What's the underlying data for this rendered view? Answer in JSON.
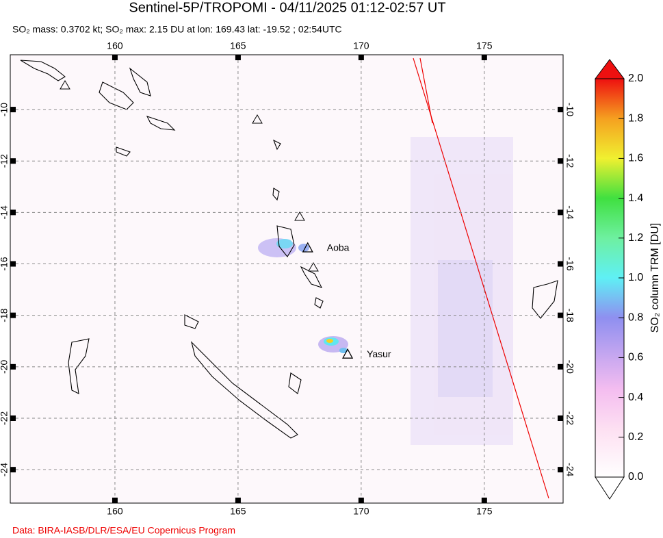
{
  "title": "Sentinel-5P/TROPOMI - 04/11/2025 01:12-02:57 UT",
  "subtitle": "SO₂ mass: 0.3702 kt; SO₂ max: 2.15 DU at lon: 169.43 lat: -19.52 ; 02:54UTC",
  "map": {
    "lonlim": [
      155.75,
      178.2
    ],
    "latlim": [
      -7.87,
      -25.3
    ],
    "lonticks": [
      160,
      165,
      170,
      175
    ],
    "latticks": [
      -10,
      -12,
      -14,
      -16,
      -18,
      -20,
      -22,
      -24
    ],
    "grid": true,
    "volcanoes": [
      {
        "name": "Aoba",
        "lon": 167.83,
        "lat": -15.4
      },
      {
        "name": "Yasur",
        "lon": 169.45,
        "lat": -19.53
      }
    ]
  },
  "colorbar": {
    "label": "SO₂ column TRM [DU]",
    "clim": [
      0,
      2
    ],
    "ticks": [
      {
        "value": 0,
        "label": "0.0"
      },
      0.2,
      0.4,
      0.6,
      0.8,
      {
        "value": 1,
        "label": "1.0"
      },
      1.2,
      1.4,
      1.6,
      1.8,
      {
        "value": 2,
        "label": "2.0"
      }
    ]
  },
  "footer": "Data: BIRA-IASB/DLR/ESA/EU Copernicus Program"
}
